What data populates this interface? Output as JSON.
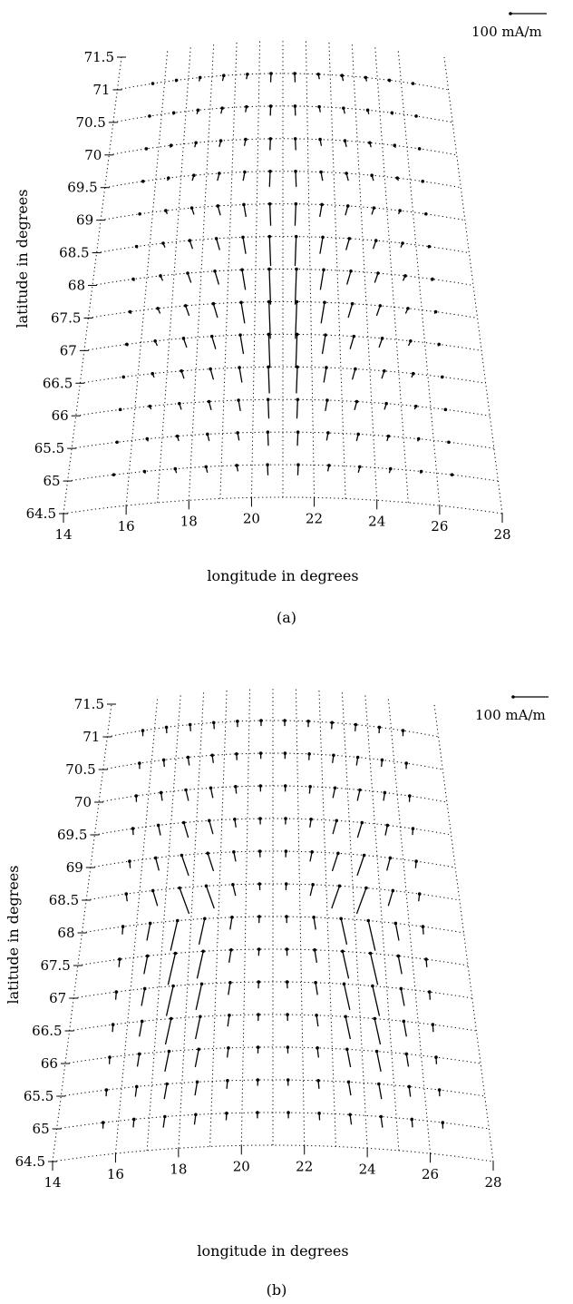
{
  "chart_data": [
    {
      "type": "vector-field",
      "panel_caption": "(a)",
      "xlabel": "longitude in degrees",
      "ylabel": "latitude in degrees",
      "x_ticks": [
        "14",
        "16",
        "18",
        "20",
        "22",
        "24",
        "26",
        "28"
      ],
      "y_ticks": [
        "64.5",
        "65",
        "65.5",
        "66",
        "66.5",
        "67",
        "67.5",
        "68",
        "68.5",
        "69",
        "69.5",
        "70",
        "70.5",
        "71",
        "71.5"
      ],
      "xlim": [
        14,
        28
      ],
      "ylim": [
        64.5,
        71.5
      ],
      "scale_label": "100 mA/m",
      "grid_longitudes": [
        16,
        17,
        18,
        19,
        20,
        21,
        22,
        23,
        24,
        25,
        26
      ],
      "grid_latitudes": [
        64.5,
        65,
        65.5,
        66,
        66.5,
        67,
        67.5,
        68,
        68.5,
        69,
        69.5,
        70,
        70.5,
        71
      ],
      "field": "A"
    },
    {
      "type": "vector-field",
      "panel_caption": "(b)",
      "xlabel": "longitude in degrees",
      "ylabel": "latitude in degrees",
      "x_ticks": [
        "14",
        "16",
        "18",
        "20",
        "22",
        "24",
        "26",
        "28"
      ],
      "y_ticks": [
        "64.5",
        "65",
        "65.5",
        "66",
        "66.5",
        "67",
        "67.5",
        "68",
        "68.5",
        "69",
        "69.5",
        "70",
        "70.5",
        "71",
        "71.5"
      ],
      "xlim": [
        14,
        28
      ],
      "ylim": [
        64.5,
        71.5
      ],
      "scale_label": "100 mA/m",
      "grid_longitudes": [
        16,
        17,
        18,
        19,
        20,
        21,
        22,
        23,
        24,
        25,
        26
      ],
      "grid_latitudes": [
        64.5,
        65,
        65.5,
        66,
        66.5,
        67,
        67.5,
        68,
        68.5,
        69,
        69.5,
        70,
        70.5,
        71
      ],
      "field": "B"
    }
  ]
}
